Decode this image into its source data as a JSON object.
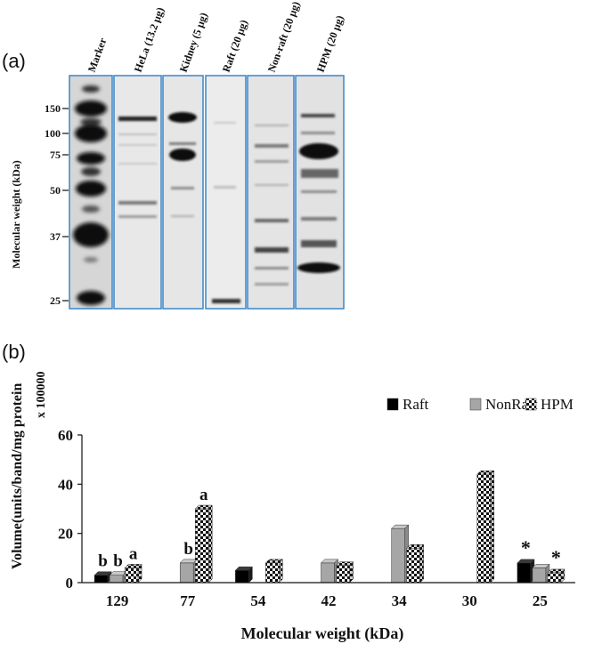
{
  "panel_a": {
    "label": "(a)",
    "ylabel": "Molecular weight (kDa)",
    "lanes": [
      "Marker",
      "HeLa (13.2 µg)",
      "Kidney (5 µg)",
      "Raft (20 µg)",
      "Non-raft (20 µg)",
      "HPM (20 µg)"
    ],
    "mw_ticks": [
      "150",
      "100",
      "75",
      "50",
      "37",
      "25"
    ]
  },
  "panel_b": {
    "label": "(b)",
    "multiplier": "x 100000"
  },
  "chart_data": {
    "type": "bar",
    "title": "",
    "xlabel": "Molecular weight (kDa)",
    "ylabel": "Volume(units/band/mg protein",
    "categories": [
      "129",
      "77",
      "54",
      "42",
      "34",
      "30",
      "25"
    ],
    "ylim": [
      0,
      60
    ],
    "yticks": [
      "0",
      "20",
      "40",
      "60"
    ],
    "legend_position": "top-right",
    "series": [
      {
        "name": "Raft",
        "color": "#000000",
        "values": [
          3,
          0,
          5,
          0,
          0,
          0,
          8
        ]
      },
      {
        "name": "NonRaft",
        "color": "#a6a6a6",
        "values": [
          3,
          8,
          0,
          8,
          22,
          0,
          6
        ]
      },
      {
        "name": "HPM",
        "color": "checkerboard",
        "values": [
          6,
          30,
          8,
          7,
          14,
          44,
          4
        ]
      }
    ],
    "annotations": [
      {
        "category": "129",
        "series": "Raft",
        "text": "b"
      },
      {
        "category": "129",
        "series": "NonRaft",
        "text": "b"
      },
      {
        "category": "129",
        "series": "HPM",
        "text": "a"
      },
      {
        "category": "77",
        "series": "NonRaft",
        "text": "b"
      },
      {
        "category": "77",
        "series": "HPM",
        "text": "a"
      },
      {
        "category": "25",
        "series": "Raft",
        "text": "*"
      },
      {
        "category": "25",
        "series": "HPM",
        "text": "*"
      }
    ]
  }
}
